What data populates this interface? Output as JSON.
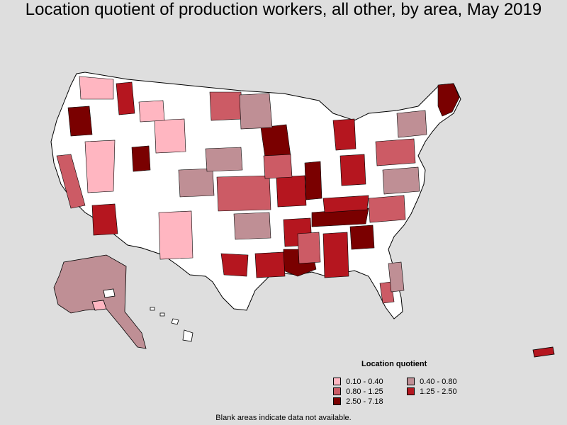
{
  "title": "Location quotient of production workers, all other, by area, May 2019",
  "legend": {
    "title": "Location quotient",
    "items": [
      {
        "label": "0.10 - 0.40",
        "color": "#ffb6c1"
      },
      {
        "label": "0.40 - 0.80",
        "color": "#bf8f95"
      },
      {
        "label": "0.80 - 1.25",
        "color": "#cc5b65"
      },
      {
        "label": "1.25 - 2.50",
        "color": "#b5161f"
      },
      {
        "label": "2.50 - 7.18",
        "color": "#7a0000"
      }
    ]
  },
  "note": "Blank areas indicate data not available.",
  "colors": {
    "background": "#dedede",
    "no_data": "#ffffff",
    "border": "#000000"
  }
}
